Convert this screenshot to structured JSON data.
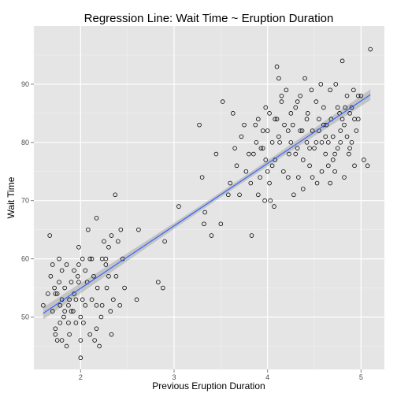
{
  "chart_data": {
    "type": "scatter",
    "title": "Regression Line: Wait Time ~ Eruption Duration",
    "xlabel": "Previous Eruption Duration",
    "ylabel": "Wait Time",
    "xlim": [
      1.5,
      5.25
    ],
    "ylim": [
      41,
      100
    ],
    "xticks": [
      2,
      3,
      4,
      5
    ],
    "yticks": [
      50,
      60,
      70,
      80,
      90
    ],
    "grid": true,
    "background": "#e5e5e5",
    "grid_color": "#ffffff",
    "point_color": "#000000",
    "line_color": "#3366ff",
    "band_color": "#999999",
    "regression": {
      "intercept": 33.4744,
      "slope": 10.7296,
      "x_range": [
        1.6,
        5.1
      ],
      "band_halfwidth_ends": 1.05,
      "band_halfwidth_mid": 0.45,
      "x_center": 3.49
    },
    "points": [
      [
        1.6,
        52
      ],
      [
        1.67,
        64
      ],
      [
        1.7,
        59
      ],
      [
        1.73,
        54
      ],
      [
        1.75,
        54
      ],
      [
        1.77,
        60
      ],
      [
        1.78,
        52
      ],
      [
        1.8,
        58
      ],
      [
        1.8,
        53
      ],
      [
        1.82,
        50
      ],
      [
        1.73,
        48
      ],
      [
        1.73,
        47
      ],
      [
        1.75,
        46
      ],
      [
        1.78,
        49
      ],
      [
        1.8,
        46
      ],
      [
        1.83,
        51
      ],
      [
        1.83,
        55
      ],
      [
        1.85,
        59
      ],
      [
        1.85,
        45
      ],
      [
        1.87,
        49
      ],
      [
        1.87,
        52
      ],
      [
        1.88,
        47
      ],
      [
        1.9,
        56
      ],
      [
        1.92,
        51
      ],
      [
        1.93,
        54
      ],
      [
        1.95,
        49
      ],
      [
        1.95,
        53
      ],
      [
        1.97,
        57
      ],
      [
        1.98,
        56
      ],
      [
        1.98,
        59
      ],
      [
        1.98,
        62
      ],
      [
        2.0,
        43
      ],
      [
        2.0,
        46
      ],
      [
        2.0,
        50
      ],
      [
        2.02,
        53
      ],
      [
        2.02,
        60
      ],
      [
        2.03,
        49
      ],
      [
        2.05,
        58
      ],
      [
        2.07,
        56
      ],
      [
        2.08,
        65
      ],
      [
        2.1,
        47
      ],
      [
        2.12,
        53
      ],
      [
        2.12,
        60
      ],
      [
        2.15,
        46
      ],
      [
        2.17,
        48
      ],
      [
        2.17,
        52
      ],
      [
        2.17,
        67
      ],
      [
        2.18,
        55
      ],
      [
        2.2,
        45
      ],
      [
        2.22,
        50
      ],
      [
        2.23,
        52
      ],
      [
        2.23,
        60
      ],
      [
        2.25,
        63
      ],
      [
        2.27,
        60
      ],
      [
        2.28,
        55
      ],
      [
        2.3,
        62
      ],
      [
        2.32,
        51
      ],
      [
        2.33,
        47
      ],
      [
        2.33,
        64
      ],
      [
        2.35,
        53
      ],
      [
        2.37,
        71
      ],
      [
        2.38,
        57
      ],
      [
        2.4,
        63
      ],
      [
        2.42,
        52
      ],
      [
        2.43,
        65
      ],
      [
        2.45,
        60
      ],
      [
        2.47,
        55
      ],
      [
        1.65,
        54
      ],
      [
        1.68,
        57
      ],
      [
        1.7,
        51
      ],
      [
        1.72,
        55
      ],
      [
        1.77,
        56
      ],
      [
        1.88,
        53
      ],
      [
        1.9,
        51
      ],
      [
        1.93,
        58
      ],
      [
        2.05,
        52
      ],
      [
        2.1,
        60
      ],
      [
        2.14,
        57
      ],
      [
        2.27,
        59
      ],
      [
        2.3,
        57
      ],
      [
        2.6,
        53
      ],
      [
        2.62,
        65
      ],
      [
        2.83,
        56
      ],
      [
        2.88,
        55
      ],
      [
        2.9,
        63
      ],
      [
        3.05,
        69
      ],
      [
        3.27,
        83
      ],
      [
        3.3,
        74
      ],
      [
        3.32,
        66
      ],
      [
        3.33,
        68
      ],
      [
        3.4,
        64
      ],
      [
        3.45,
        78
      ],
      [
        3.5,
        66
      ],
      [
        3.52,
        87
      ],
      [
        3.58,
        71
      ],
      [
        3.6,
        73
      ],
      [
        3.63,
        85
      ],
      [
        3.65,
        79
      ],
      [
        3.67,
        76
      ],
      [
        3.7,
        71
      ],
      [
        3.72,
        81
      ],
      [
        3.75,
        83
      ],
      [
        3.77,
        75
      ],
      [
        3.8,
        78
      ],
      [
        3.82,
        73
      ],
      [
        3.83,
        64
      ],
      [
        3.85,
        78
      ],
      [
        3.87,
        83
      ],
      [
        3.88,
        80
      ],
      [
        3.9,
        84
      ],
      [
        3.92,
        74
      ],
      [
        3.93,
        79
      ],
      [
        3.95,
        82
      ],
      [
        3.97,
        70
      ],
      [
        3.98,
        86
      ],
      [
        4.0,
        75
      ],
      [
        4.0,
        82
      ],
      [
        4.02,
        85
      ],
      [
        4.03,
        70
      ],
      [
        4.05,
        76
      ],
      [
        4.07,
        69
      ],
      [
        4.08,
        77
      ],
      [
        4.1,
        84
      ],
      [
        4.12,
        91
      ],
      [
        4.13,
        80
      ],
      [
        4.15,
        87
      ],
      [
        4.17,
        75
      ],
      [
        4.18,
        83
      ],
      [
        4.2,
        89
      ],
      [
        4.22,
        74
      ],
      [
        4.23,
        78
      ],
      [
        4.25,
        80
      ],
      [
        4.27,
        83
      ],
      [
        4.28,
        71
      ],
      [
        4.3,
        86
      ],
      [
        4.32,
        79
      ],
      [
        4.33,
        74
      ],
      [
        4.35,
        88
      ],
      [
        4.37,
        82
      ],
      [
        4.38,
        77
      ],
      [
        4.4,
        91
      ],
      [
        4.42,
        80
      ],
      [
        4.43,
        85
      ],
      [
        4.45,
        76
      ],
      [
        4.47,
        89
      ],
      [
        4.48,
        82
      ],
      [
        4.5,
        79
      ],
      [
        4.52,
        87
      ],
      [
        4.53,
        73
      ],
      [
        4.55,
        84
      ],
      [
        4.57,
        90
      ],
      [
        4.58,
        80
      ],
      [
        4.6,
        86
      ],
      [
        4.62,
        78
      ],
      [
        4.63,
        83
      ],
      [
        4.65,
        76
      ],
      [
        4.67,
        89
      ],
      [
        4.68,
        84
      ],
      [
        4.7,
        81
      ],
      [
        4.72,
        75
      ],
      [
        4.73,
        90
      ],
      [
        4.75,
        79
      ],
      [
        4.77,
        85
      ],
      [
        4.78,
        80
      ],
      [
        4.8,
        94
      ],
      [
        4.82,
        83
      ],
      [
        4.83,
        86
      ],
      [
        4.85,
        81
      ],
      [
        4.87,
        78
      ],
      [
        4.88,
        85
      ],
      [
        4.9,
        80
      ],
      [
        4.92,
        89
      ],
      [
        4.93,
        84
      ],
      [
        4.95,
        82
      ],
      [
        4.97,
        88
      ],
      [
        5.0,
        88
      ],
      [
        5.03,
        77
      ],
      [
        5.07,
        76
      ],
      [
        5.1,
        96
      ],
      [
        4.1,
        93
      ],
      [
        4.15,
        88
      ],
      [
        4.3,
        78
      ],
      [
        4.38,
        72
      ],
      [
        4.45,
        79
      ],
      [
        4.58,
        75
      ],
      [
        4.62,
        81
      ],
      [
        4.7,
        77
      ],
      [
        4.75,
        86
      ],
      [
        4.82,
        74
      ],
      [
        4.88,
        79
      ],
      [
        4.93,
        76
      ],
      [
        4.97,
        84
      ],
      [
        4.05,
        80
      ],
      [
        3.98,
        77
      ],
      [
        4.12,
        81
      ],
      [
        4.25,
        85
      ],
      [
        4.35,
        82
      ],
      [
        4.48,
        74
      ],
      [
        4.52,
        80
      ],
      [
        4.6,
        83
      ],
      [
        4.67,
        73
      ],
      [
        4.78,
        82
      ],
      [
        4.85,
        88
      ],
      [
        3.9,
        71
      ],
      [
        3.95,
        79
      ],
      [
        4.02,
        73
      ],
      [
        4.08,
        84
      ],
      [
        4.22,
        82
      ],
      [
        4.32,
        87
      ],
      [
        4.42,
        84
      ],
      [
        4.55,
        82
      ],
      [
        4.65,
        80
      ],
      [
        4.72,
        78
      ],
      [
        4.8,
        84
      ],
      [
        4.9,
        86
      ]
    ]
  }
}
